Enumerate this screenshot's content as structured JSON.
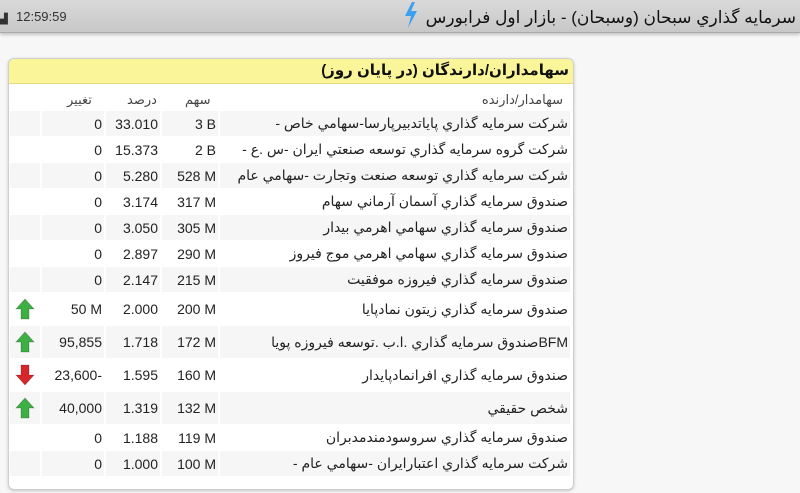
{
  "status_bar": {
    "time": "12:59:59"
  },
  "header": {
    "title": "سرمايه گذاري سبحان (وسبحان) - بازار اول فرابورس"
  },
  "card": {
    "title": "سهامداران/دارندگان (در پايان روز)",
    "columns": {
      "holder": "سهامدار/دارنده",
      "shares": "سهم",
      "percent": "درصد",
      "change": "تغيير"
    },
    "rows": [
      {
        "holder": "شركت سرمايه گذاري پاياتدبيرپارسا-سهامي خاص -",
        "shares": "3 B",
        "percent": "33.010",
        "change": "0",
        "trend": "none"
      },
      {
        "holder": "شركت گروه سرمايه گذاري توسعه صنعتي ايران -س .ع -",
        "shares": "2 B",
        "percent": "15.373",
        "change": "0",
        "trend": "none"
      },
      {
        "holder": "شركت سرمايه گذاري توسعه صنعت وتجارت -سهامي عام",
        "shares": "528 M",
        "percent": "5.280",
        "change": "0",
        "trend": "none"
      },
      {
        "holder": "صندوق سرمايه گذاري آسمان آرماني سهام",
        "shares": "317 M",
        "percent": "3.174",
        "change": "0",
        "trend": "none"
      },
      {
        "holder": "صندوق سرمايه گذاري سهامي اهرمي بيدار",
        "shares": "305 M",
        "percent": "3.050",
        "change": "0",
        "trend": "none"
      },
      {
        "holder": "صندوق سرمايه گذاري سهامي اهرمي موج فيروز",
        "shares": "290 M",
        "percent": "2.897",
        "change": "0",
        "trend": "none"
      },
      {
        "holder": "صندوق سرمايه گذاري فيروزه موفقيت",
        "shares": "215 M",
        "percent": "2.147",
        "change": "0",
        "trend": "none"
      },
      {
        "holder": "صندوق سرمايه گذاري زيتون نمادپايا",
        "shares": "200 M",
        "percent": "2.000",
        "change": "50 M",
        "trend": "up"
      },
      {
        "holder": "BFMصندوق سرمايه گذاري .ا.ب .توسعه فيروزه پويا",
        "shares": "172 M",
        "percent": "1.718",
        "change": "95,855",
        "trend": "up"
      },
      {
        "holder": "صندوق سرمايه گذاري افرانمادپايدار",
        "shares": "160 M",
        "percent": "1.595",
        "change": "23,600-",
        "trend": "down"
      },
      {
        "holder": "شخص حقيقي",
        "shares": "132 M",
        "percent": "1.319",
        "change": "40,000",
        "trend": "up"
      },
      {
        "holder": "صندوق سرمايه گذاري سروسودمندمدبران",
        "shares": "119 M",
        "percent": "1.188",
        "change": "0",
        "trend": "none"
      },
      {
        "holder": "شركت سرمايه گذاري اعتبارايران -سهامي عام -",
        "shares": "100 M",
        "percent": "1.000",
        "change": "0",
        "trend": "none"
      }
    ]
  },
  "colors": {
    "header_bg": "#fbf59a",
    "up": "#3cb043",
    "down": "#d9262c",
    "accent": "#3aa0f0"
  }
}
